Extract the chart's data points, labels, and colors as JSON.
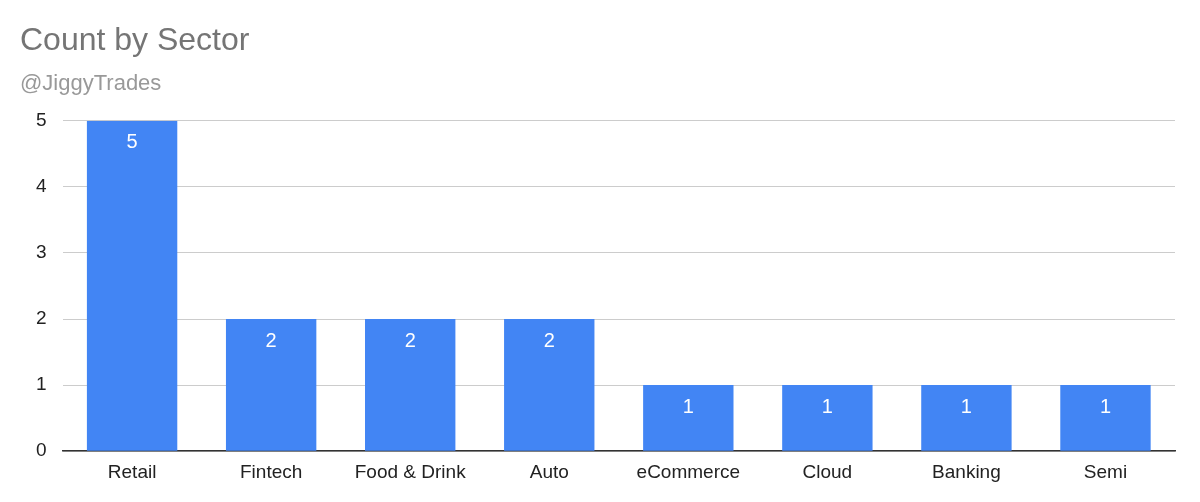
{
  "chart_data": {
    "type": "bar",
    "title": "Count by Sector",
    "subtitle": "@JiggyTrades",
    "categories": [
      "Retail",
      "Fintech",
      "Food & Drink",
      "Auto",
      "eCommerce",
      "Cloud",
      "Banking",
      "Semi"
    ],
    "values": [
      5,
      2,
      2,
      2,
      1,
      1,
      1,
      1
    ],
    "color": "#4285f4",
    "ylim": [
      0,
      5
    ],
    "yticks": [
      0,
      1,
      2,
      3,
      4,
      5
    ],
    "grid": "y",
    "data_labels": true
  }
}
